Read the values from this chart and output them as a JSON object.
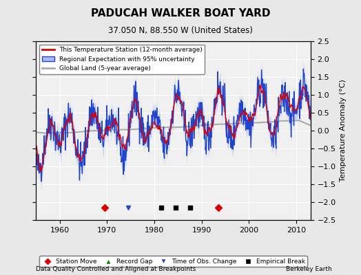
{
  "title": "PADUCAH WALKER BOAT YARD",
  "subtitle": "37.050 N, 88.550 W (United States)",
  "footer_left": "Data Quality Controlled and Aligned at Breakpoints",
  "footer_right": "Berkeley Earth",
  "ylabel": "Temperature Anomaly (°C)",
  "xlim": [
    1955,
    2013
  ],
  "ylim": [
    -2.5,
    2.5
  ],
  "yticks": [
    -2.5,
    -2,
    -1.5,
    -1,
    -0.5,
    0,
    0.5,
    1,
    1.5,
    2,
    2.5
  ],
  "xticks": [
    1960,
    1970,
    1980,
    1990,
    2000,
    2010
  ],
  "station_moves": [
    1969.5,
    1993.5
  ],
  "obs_changes": [
    1974.5
  ],
  "empirical_breaks": [
    1981.5,
    1984.5,
    1987.5
  ],
  "bg_color": "#e8e8e8",
  "plot_bg_color": "#f0f0f0",
  "red_color": "#dd0000",
  "blue_color": "#2244cc",
  "blue_fill_color": "#aabbee",
  "gray_color": "#aaaaaa",
  "seed": 42,
  "start_year": 1955,
  "end_year": 2012
}
